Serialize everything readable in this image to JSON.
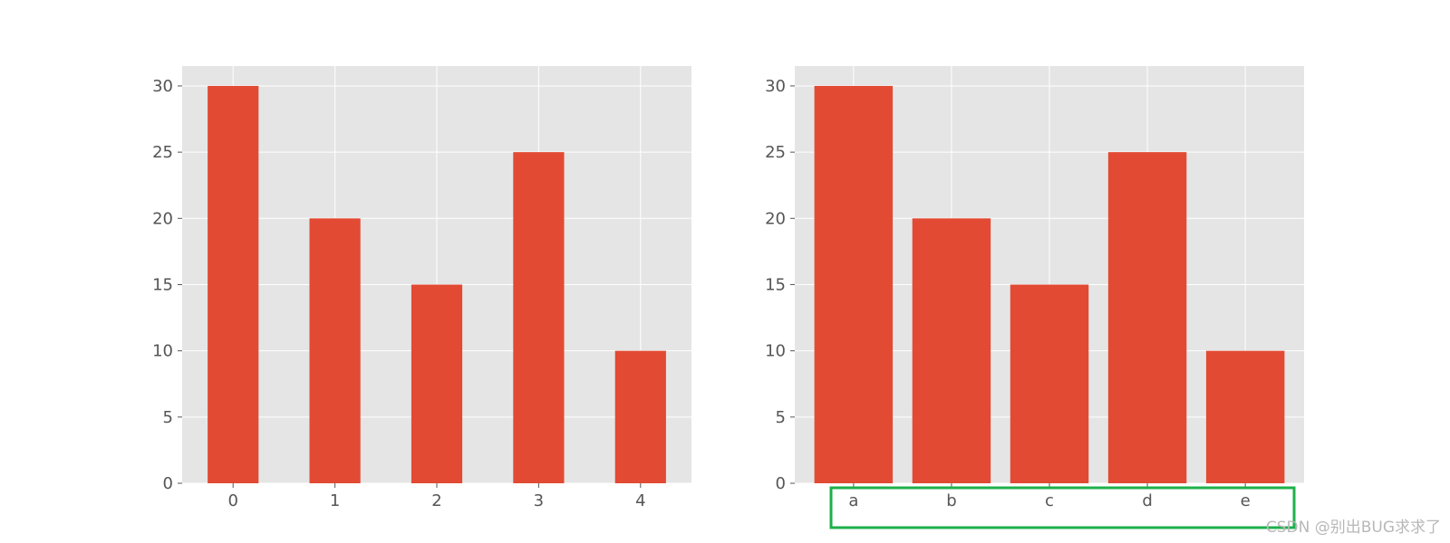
{
  "chart_data": [
    {
      "type": "bar",
      "categories": [
        "0",
        "1",
        "2",
        "3",
        "4"
      ],
      "values": [
        30,
        20,
        15,
        25,
        10
      ],
      "title": "",
      "xlabel": "",
      "ylabel": "",
      "ylim": [
        0,
        31.5
      ],
      "yticks": [
        0,
        5,
        10,
        15,
        20,
        25,
        30
      ],
      "grid": true,
      "style": "ggplot",
      "bar_color": "#E24A33",
      "background_color": "#E5E5E5"
    },
    {
      "type": "bar",
      "categories": [
        "a",
        "b",
        "c",
        "d",
        "e"
      ],
      "values": [
        30,
        20,
        15,
        25,
        10
      ],
      "title": "",
      "xlabel": "",
      "ylabel": "",
      "ylim": [
        0,
        31.5
      ],
      "yticks": [
        0,
        5,
        10,
        15,
        20,
        25,
        30
      ],
      "grid": true,
      "style": "ggplot",
      "bar_color": "#E24A33",
      "background_color": "#E5E5E5",
      "highlight": {
        "target": "x tick labels",
        "color": "#1DB04B"
      }
    }
  ],
  "watermark": "CSDN @别出BUG求求了"
}
